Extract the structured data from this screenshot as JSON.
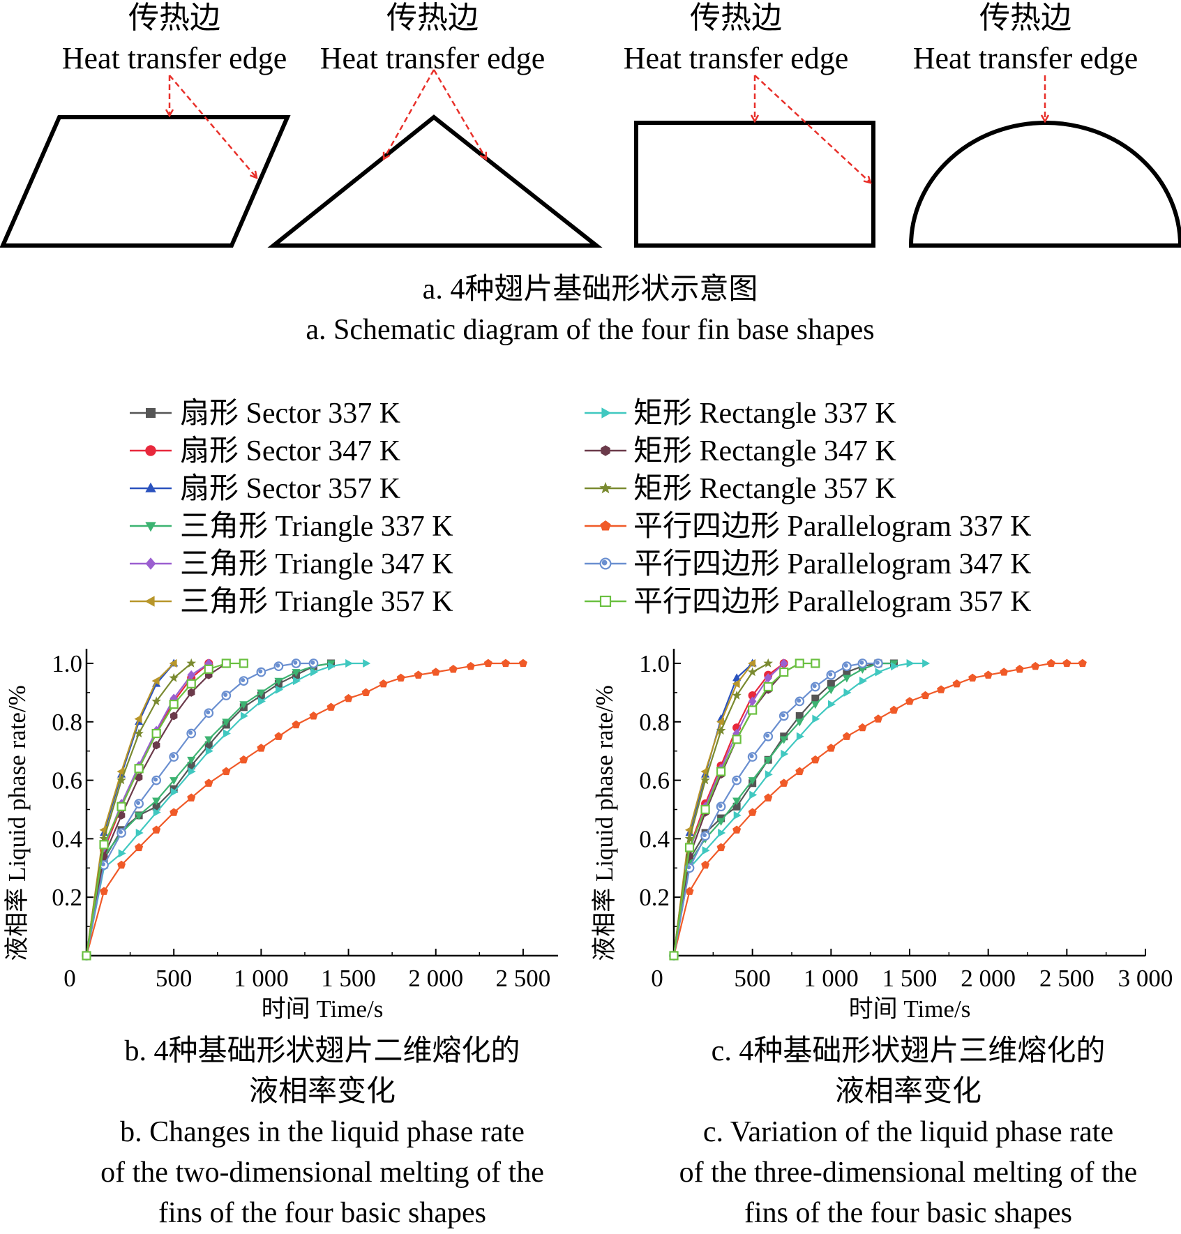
{
  "shapes_panel": {
    "labels": [
      {
        "zh": "传热边",
        "en": "Heat transfer edge"
      },
      {
        "zh": "传热边",
        "en": "Heat transfer edge"
      },
      {
        "zh": "传热边",
        "en": "Heat transfer edge"
      },
      {
        "zh": "传热边",
        "en": "Heat transfer edge"
      }
    ],
    "caption_zh": "a. 4种翅片基础形状示意图",
    "caption_en": "a. Schematic diagram of the four fin base shapes",
    "outline_color": "#000000",
    "arrow_color": "#e8302a"
  },
  "legend": {
    "items": [
      {
        "label": "扇形 Sector 337 K",
        "color": "#555555",
        "marker": "square"
      },
      {
        "label": "扇形 Sector 347 K",
        "color": "#e8283c",
        "marker": "circle"
      },
      {
        "label": "扇形 Sector 357 K",
        "color": "#2a52be",
        "marker": "triangle-up"
      },
      {
        "label": "三角形 Triangle 337 K",
        "color": "#3cb371",
        "marker": "triangle-down"
      },
      {
        "label": "三角形 Triangle 347 K",
        "color": "#9b5fd0",
        "marker": "diamond"
      },
      {
        "label": "三角形 Triangle 357 K",
        "color": "#b8962a",
        "marker": "triangle-left"
      },
      {
        "label": "矩形 Rectangle 337 K",
        "color": "#40c8c0",
        "marker": "triangle-right"
      },
      {
        "label": "矩形 Rectangle 347 K",
        "color": "#6b3a4a",
        "marker": "hexagon"
      },
      {
        "label": "矩形 Rectangle 357 K",
        "color": "#7a8a30",
        "marker": "star"
      },
      {
        "label": "平行四边形 Parallelogram 337 K",
        "color": "#f05a28",
        "marker": "pentagon"
      },
      {
        "label": "平行四边形 Parallelogram 347 K",
        "color": "#6a8fd0",
        "marker": "circle-open-center"
      },
      {
        "label": "平行四边形 Parallelogram 357 K",
        "color": "#6ac040",
        "marker": "square-open"
      }
    ]
  },
  "chart_data": [
    {
      "type": "line",
      "caption_zh_lines": [
        "b. 4种基础形状翅片二维熔化的",
        "液相率变化"
      ],
      "caption_en_lines": [
        "b. Changes in the liquid phase rate",
        "of the two-dimensional melting of the",
        "fins of the four basic shapes"
      ],
      "xlabel": "时间 Time/s",
      "ylabel": "液相率 Liquid phase rate/%",
      "xlim": [
        0,
        2700
      ],
      "ylim": [
        0,
        1.05
      ],
      "xticks": [
        0,
        500,
        1000,
        1500,
        2000,
        2500
      ],
      "xtick_labels": [
        "0",
        "500",
        "1 000",
        "1 500",
        "2 000",
        "2 500"
      ],
      "yticks": [
        0.2,
        0.4,
        0.6,
        0.8,
        1.0
      ],
      "ytick_labels": [
        "0.2",
        "0.4",
        "0.6",
        "0.8",
        "1.0"
      ],
      "series": [
        {
          "name": "扇形 Sector 337 K",
          "x": [
            0,
            100,
            200,
            300,
            400,
            500,
            600,
            700,
            800,
            900,
            1000,
            1100,
            1200,
            1300,
            1400
          ],
          "y": [
            0,
            0.33,
            0.43,
            0.48,
            0.51,
            0.57,
            0.65,
            0.72,
            0.79,
            0.85,
            0.89,
            0.93,
            0.96,
            0.99,
            1.0
          ]
        },
        {
          "name": "扇形 Sector 347 K",
          "x": [
            0,
            100,
            200,
            300,
            400,
            500,
            600,
            700
          ],
          "y": [
            0,
            0.36,
            0.51,
            0.64,
            0.76,
            0.87,
            0.95,
            1.0
          ]
        },
        {
          "name": "扇形 Sector 357 K",
          "x": [
            0,
            100,
            200,
            300,
            400,
            500
          ],
          "y": [
            0,
            0.42,
            0.62,
            0.8,
            0.93,
            1.0
          ]
        },
        {
          "name": "三角形 Triangle 337 K",
          "x": [
            0,
            100,
            200,
            300,
            400,
            500,
            600,
            700,
            800,
            900,
            1000,
            1100,
            1200,
            1300,
            1400
          ],
          "y": [
            0,
            0.34,
            0.42,
            0.48,
            0.53,
            0.6,
            0.67,
            0.74,
            0.8,
            0.86,
            0.9,
            0.94,
            0.97,
            0.99,
            1.0
          ]
        },
        {
          "name": "三角形 Triangle 347 K",
          "x": [
            0,
            100,
            200,
            300,
            400,
            500,
            600,
            700
          ],
          "y": [
            0,
            0.37,
            0.52,
            0.65,
            0.77,
            0.88,
            0.96,
            1.0
          ]
        },
        {
          "name": "三角形 Triangle 357 K",
          "x": [
            0,
            100,
            200,
            300,
            400,
            500
          ],
          "y": [
            0,
            0.43,
            0.63,
            0.81,
            0.94,
            1.0
          ]
        },
        {
          "name": "矩形 Rectangle 337 K",
          "x": [
            0,
            100,
            200,
            300,
            400,
            500,
            600,
            700,
            800,
            900,
            1000,
            1100,
            1200,
            1300,
            1400,
            1500,
            1600
          ],
          "y": [
            0,
            0.3,
            0.35,
            0.42,
            0.49,
            0.56,
            0.63,
            0.7,
            0.76,
            0.82,
            0.87,
            0.91,
            0.94,
            0.97,
            0.99,
            1.0,
            1.0
          ]
        },
        {
          "name": "矩形 Rectangle 347 K",
          "x": [
            0,
            100,
            200,
            300,
            400,
            500,
            600,
            700,
            800
          ],
          "y": [
            0,
            0.34,
            0.48,
            0.61,
            0.72,
            0.82,
            0.9,
            0.96,
            1.0
          ]
        },
        {
          "name": "矩形 Rectangle 357 K",
          "x": [
            0,
            100,
            200,
            300,
            400,
            500,
            600
          ],
          "y": [
            0,
            0.4,
            0.6,
            0.76,
            0.87,
            0.95,
            1.0
          ]
        },
        {
          "name": "平行四边形 Parallelogram 337 K",
          "x": [
            0,
            100,
            200,
            300,
            400,
            500,
            600,
            700,
            800,
            900,
            1000,
            1100,
            1200,
            1300,
            1400,
            1500,
            1600,
            1700,
            1800,
            1900,
            2000,
            2100,
            2200,
            2300,
            2400,
            2500
          ],
          "y": [
            0,
            0.22,
            0.31,
            0.37,
            0.43,
            0.49,
            0.54,
            0.59,
            0.63,
            0.67,
            0.71,
            0.75,
            0.79,
            0.82,
            0.85,
            0.88,
            0.9,
            0.93,
            0.95,
            0.96,
            0.97,
            0.98,
            0.99,
            1.0,
            1.0,
            1.0
          ]
        },
        {
          "name": "平行四边形 Parallelogram 347 K",
          "x": [
            0,
            100,
            200,
            300,
            400,
            500,
            600,
            700,
            800,
            900,
            1000,
            1100,
            1200,
            1300
          ],
          "y": [
            0,
            0.31,
            0.42,
            0.52,
            0.6,
            0.68,
            0.76,
            0.83,
            0.89,
            0.94,
            0.97,
            0.99,
            1.0,
            1.0
          ]
        },
        {
          "name": "平行四边形 Parallelogram 357 K",
          "x": [
            0,
            100,
            200,
            300,
            400,
            500,
            600,
            700,
            800,
            900
          ],
          "y": [
            0,
            0.38,
            0.51,
            0.64,
            0.76,
            0.86,
            0.93,
            0.98,
            1.0,
            1.0
          ]
        }
      ]
    },
    {
      "type": "line",
      "caption_zh_lines": [
        "c. 4种基础形状翅片三维熔化的",
        "液相率变化"
      ],
      "caption_en_lines": [
        "c. Variation of the liquid phase rate",
        "of the three-dimensional melting of the",
        "fins of the four basic shapes"
      ],
      "xlabel": "时间 Time/s",
      "ylabel": "液相率 Liquid phase rate/%",
      "xlim": [
        0,
        3000
      ],
      "ylim": [
        0,
        1.05
      ],
      "xticks": [
        0,
        500,
        1000,
        1500,
        2000,
        2500,
        3000
      ],
      "xtick_labels": [
        "0",
        "500",
        "1 000",
        "1 500",
        "2 000",
        "2 500",
        "3 000"
      ],
      "yticks": [
        0.2,
        0.4,
        0.6,
        0.8,
        1.0
      ],
      "ytick_labels": [
        "0.2",
        "0.4",
        "0.6",
        "0.8",
        "1.0"
      ],
      "series": [
        {
          "name": "扇形 Sector 337 K",
          "x": [
            0,
            100,
            200,
            300,
            400,
            500,
            600,
            700,
            800,
            900,
            1000,
            1100,
            1200,
            1300,
            1400
          ],
          "y": [
            0,
            0.33,
            0.42,
            0.47,
            0.51,
            0.59,
            0.67,
            0.75,
            0.82,
            0.88,
            0.93,
            0.97,
            0.99,
            1.0,
            1.0
          ]
        },
        {
          "name": "扇形 Sector 347 K",
          "x": [
            0,
            100,
            200,
            300,
            400,
            500,
            600,
            700
          ],
          "y": [
            0,
            0.37,
            0.52,
            0.65,
            0.78,
            0.89,
            0.96,
            1.0
          ]
        },
        {
          "name": "扇形 Sector 357 K",
          "x": [
            0,
            100,
            200,
            300,
            400,
            500
          ],
          "y": [
            0,
            0.42,
            0.62,
            0.81,
            0.95,
            1.0
          ]
        },
        {
          "name": "三角形 Triangle 337 K",
          "x": [
            0,
            100,
            200,
            300,
            400,
            500,
            600,
            700,
            800,
            900,
            1000,
            1100,
            1200,
            1300,
            1400
          ],
          "y": [
            0,
            0.32,
            0.4,
            0.46,
            0.53,
            0.6,
            0.67,
            0.74,
            0.8,
            0.86,
            0.91,
            0.95,
            0.98,
            1.0,
            1.0
          ]
        },
        {
          "name": "三角形 Triangle 347 K",
          "x": [
            0,
            100,
            200,
            300,
            400,
            500,
            600,
            700
          ],
          "y": [
            0,
            0.36,
            0.51,
            0.64,
            0.76,
            0.87,
            0.95,
            1.0
          ]
        },
        {
          "name": "三角形 Triangle 357 K",
          "x": [
            0,
            100,
            200,
            300,
            400,
            500
          ],
          "y": [
            0,
            0.43,
            0.63,
            0.8,
            0.93,
            1.0
          ]
        },
        {
          "name": "矩形 Rectangle 337 K",
          "x": [
            0,
            100,
            200,
            300,
            400,
            500,
            600,
            700,
            800,
            900,
            1000,
            1100,
            1200,
            1300,
            1400,
            1500,
            1600
          ],
          "y": [
            0,
            0.3,
            0.36,
            0.42,
            0.48,
            0.55,
            0.62,
            0.69,
            0.75,
            0.81,
            0.86,
            0.9,
            0.94,
            0.97,
            0.99,
            1.0,
            1.0
          ]
        },
        {
          "name": "矩形 Rectangle 347 K",
          "x": [
            0,
            100,
            200,
            300,
            400,
            500,
            600,
            700,
            800
          ],
          "y": [
            0,
            0.34,
            0.49,
            0.62,
            0.74,
            0.84,
            0.91,
            0.97,
            1.0
          ]
        },
        {
          "name": "矩形 Rectangle 357 K",
          "x": [
            0,
            100,
            200,
            300,
            400,
            500,
            600
          ],
          "y": [
            0,
            0.4,
            0.6,
            0.77,
            0.89,
            0.97,
            1.0
          ]
        },
        {
          "name": "平行四边形 Parallelogram 337 K",
          "x": [
            0,
            100,
            200,
            300,
            400,
            500,
            600,
            700,
            800,
            900,
            1000,
            1100,
            1200,
            1300,
            1400,
            1500,
            1600,
            1700,
            1800,
            1900,
            2000,
            2100,
            2200,
            2300,
            2400,
            2500,
            2600
          ],
          "y": [
            0,
            0.22,
            0.31,
            0.37,
            0.43,
            0.49,
            0.54,
            0.59,
            0.63,
            0.67,
            0.71,
            0.75,
            0.78,
            0.81,
            0.84,
            0.87,
            0.89,
            0.91,
            0.93,
            0.95,
            0.96,
            0.97,
            0.98,
            0.99,
            1.0,
            1.0,
            1.0
          ]
        },
        {
          "name": "平行四边形 Parallelogram 347 K",
          "x": [
            0,
            100,
            200,
            300,
            400,
            500,
            600,
            700,
            800,
            900,
            1000,
            1100,
            1200,
            1300
          ],
          "y": [
            0,
            0.3,
            0.41,
            0.51,
            0.6,
            0.68,
            0.75,
            0.82,
            0.87,
            0.92,
            0.96,
            0.99,
            1.0,
            1.0
          ]
        },
        {
          "name": "平行四边形 Parallelogram 357 K",
          "x": [
            0,
            100,
            200,
            300,
            400,
            500,
            600,
            700,
            800,
            900
          ],
          "y": [
            0,
            0.37,
            0.5,
            0.63,
            0.74,
            0.84,
            0.92,
            0.97,
            1.0,
            1.0
          ]
        }
      ]
    }
  ]
}
